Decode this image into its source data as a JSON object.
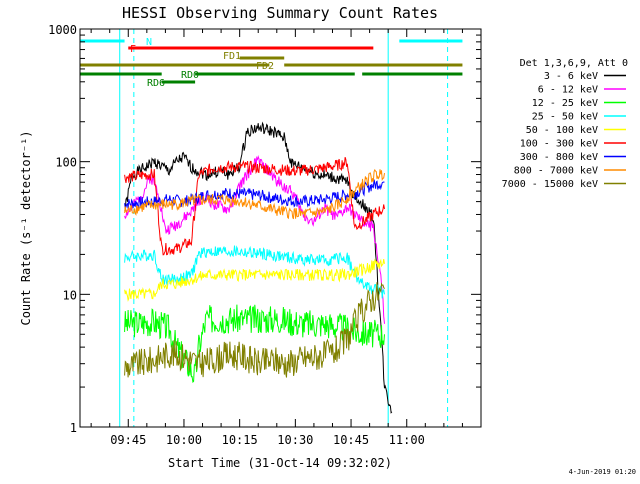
{
  "chart_data": {
    "type": "line",
    "title": "HESSI Observing Summary Count Rates",
    "xlabel": "Start Time (31-Oct-14 09:32:02)",
    "ylabel": "Count Rate (s⁻¹ detector⁻¹)",
    "x_unit": "minutes",
    "xlim": [
      0,
      108
    ],
    "ylim": [
      1,
      1000
    ],
    "yscale": "log",
    "grid": false,
    "legend_position": "right",
    "legend_title": "Det 1,3,6,9, Att 0",
    "x_ticks": [
      {
        "x": 13,
        "label": "09:45"
      },
      {
        "x": 28,
        "label": "10:00"
      },
      {
        "x": 43,
        "label": "10:15"
      },
      {
        "x": 58,
        "label": "10:30"
      },
      {
        "x": 73,
        "label": "10:45"
      },
      {
        "x": 88,
        "label": "11:00"
      }
    ],
    "x_minor_every": 5,
    "y_ticks": [
      {
        "y": 1,
        "label": "1"
      },
      {
        "y": 10,
        "label": "10"
      },
      {
        "y": 100,
        "label": "100"
      },
      {
        "y": 1000,
        "label": "1000"
      }
    ],
    "series": [
      {
        "name": "3 - 6 keV",
        "color": "#000000",
        "points": [
          [
            12,
            42
          ],
          [
            14,
            78
          ],
          [
            18,
            92
          ],
          [
            20,
            100
          ],
          [
            24,
            85
          ],
          [
            26,
            100
          ],
          [
            28,
            108
          ],
          [
            30,
            90
          ],
          [
            34,
            80
          ],
          [
            38,
            85
          ],
          [
            40,
            80
          ],
          [
            43,
            92
          ],
          [
            45,
            170
          ],
          [
            48,
            180
          ],
          [
            52,
            168
          ],
          [
            55,
            150
          ],
          [
            57,
            96
          ],
          [
            60,
            90
          ],
          [
            64,
            80
          ],
          [
            68,
            76
          ],
          [
            72,
            70
          ],
          [
            74,
            55
          ],
          [
            76,
            48
          ],
          [
            79,
            38
          ],
          [
            81,
            6
          ],
          [
            82,
            2
          ],
          [
            84,
            1.3
          ]
        ]
      },
      {
        "name": "6 - 12 keV",
        "color": "#ff00ff",
        "points": [
          [
            12,
            40
          ],
          [
            14,
            45
          ],
          [
            17,
            58
          ],
          [
            19,
            78
          ],
          [
            21,
            60
          ],
          [
            23,
            30
          ],
          [
            27,
            35
          ],
          [
            30,
            42
          ],
          [
            33,
            55
          ],
          [
            36,
            48
          ],
          [
            40,
            43
          ],
          [
            43,
            65
          ],
          [
            46,
            88
          ],
          [
            48,
            102
          ],
          [
            50,
            88
          ],
          [
            53,
            72
          ],
          [
            56,
            62
          ],
          [
            58,
            55
          ],
          [
            60,
            40
          ],
          [
            63,
            35
          ],
          [
            66,
            45
          ],
          [
            69,
            38
          ],
          [
            72,
            45
          ],
          [
            74,
            40
          ],
          [
            76,
            35
          ],
          [
            79,
            32
          ],
          [
            81,
            14
          ],
          [
            82,
            6
          ]
        ]
      },
      {
        "name": "12 - 25 keV",
        "color": "#00ff00",
        "points": [
          [
            12,
            6
          ],
          [
            20,
            6.2
          ],
          [
            24,
            5.5
          ],
          [
            26,
            4
          ],
          [
            29,
            3
          ],
          [
            31,
            2.4
          ],
          [
            32,
            4
          ],
          [
            34,
            6.5
          ],
          [
            44,
            6.5
          ],
          [
            54,
            6.5
          ],
          [
            60,
            6
          ],
          [
            66,
            6
          ],
          [
            72,
            5.5
          ],
          [
            74,
            5.2
          ],
          [
            78,
            5
          ],
          [
            80,
            5
          ],
          [
            82,
            5
          ]
        ]
      },
      {
        "name": "25 - 50 keV",
        "color": "#00ffff",
        "points": [
          [
            12,
            19
          ],
          [
            20,
            20
          ],
          [
            22,
            13
          ],
          [
            26,
            13
          ],
          [
            30,
            14
          ],
          [
            32,
            20
          ],
          [
            34,
            21
          ],
          [
            42,
            21
          ],
          [
            50,
            20
          ],
          [
            58,
            18.5
          ],
          [
            66,
            18
          ],
          [
            72,
            19
          ],
          [
            74,
            14
          ],
          [
            76,
            12
          ],
          [
            78,
            11
          ],
          [
            80,
            11
          ],
          [
            82,
            10
          ]
        ]
      },
      {
        "name": "50 - 100 keV",
        "color": "#ffff00",
        "points": [
          [
            12,
            10
          ],
          [
            20,
            10
          ],
          [
            22,
            12
          ],
          [
            26,
            12
          ],
          [
            30,
            13
          ],
          [
            34,
            14
          ],
          [
            72,
            14
          ],
          [
            75,
            15
          ],
          [
            78,
            16
          ],
          [
            80,
            17
          ],
          [
            82,
            17
          ]
        ]
      },
      {
        "name": "100 - 300 keV",
        "color": "#ff0000",
        "points": [
          [
            12,
            76
          ],
          [
            18,
            80
          ],
          [
            20,
            80
          ],
          [
            22,
            22
          ],
          [
            26,
            22
          ],
          [
            30,
            25
          ],
          [
            32,
            80
          ],
          [
            36,
            90
          ],
          [
            44,
            92
          ],
          [
            52,
            88
          ],
          [
            58,
            85
          ],
          [
            64,
            88
          ],
          [
            70,
            95
          ],
          [
            72,
            100
          ],
          [
            74,
            32
          ],
          [
            78,
            38
          ],
          [
            80,
            42
          ],
          [
            82,
            44
          ]
        ]
      },
      {
        "name": "300 - 800 keV",
        "color": "#0000ff",
        "points": [
          [
            12,
            48
          ],
          [
            20,
            50
          ],
          [
            24,
            52
          ],
          [
            28,
            50
          ],
          [
            34,
            56
          ],
          [
            40,
            58
          ],
          [
            48,
            56
          ],
          [
            54,
            52
          ],
          [
            60,
            50
          ],
          [
            66,
            52
          ],
          [
            70,
            55
          ],
          [
            74,
            58
          ],
          [
            78,
            65
          ],
          [
            80,
            68
          ],
          [
            82,
            70
          ]
        ]
      },
      {
        "name": "800 - 7000 keV",
        "color": "#ff8c00",
        "points": [
          [
            12,
            42
          ],
          [
            16,
            45
          ],
          [
            20,
            47
          ],
          [
            26,
            48
          ],
          [
            32,
            51
          ],
          [
            38,
            52
          ],
          [
            44,
            50
          ],
          [
            50,
            45
          ],
          [
            54,
            42
          ],
          [
            60,
            40
          ],
          [
            66,
            42
          ],
          [
            70,
            48
          ],
          [
            74,
            60
          ],
          [
            78,
            75
          ],
          [
            80,
            80
          ],
          [
            82,
            82
          ]
        ]
      },
      {
        "name": "7000 - 15000 keV",
        "color": "#808000",
        "points": [
          [
            12,
            2.8
          ],
          [
            16,
            3
          ],
          [
            20,
            3.2
          ],
          [
            24,
            3.6
          ],
          [
            28,
            3.4
          ],
          [
            32,
            3
          ],
          [
            36,
            3.2
          ],
          [
            40,
            3.5
          ],
          [
            44,
            3.4
          ],
          [
            48,
            3
          ],
          [
            52,
            3.2
          ],
          [
            56,
            3
          ],
          [
            60,
            3.3
          ],
          [
            64,
            3.4
          ],
          [
            68,
            3.6
          ],
          [
            70,
            4
          ],
          [
            72,
            4.6
          ],
          [
            74,
            6
          ],
          [
            76,
            7.5
          ],
          [
            78,
            9
          ],
          [
            80,
            10
          ],
          [
            82,
            11
          ]
        ]
      }
    ],
    "annotations": [
      {
        "label": "N",
        "color": "#00ffff",
        "segments": [
          [
            0,
            12
          ],
          [
            86,
            103
          ]
        ]
      },
      {
        "label": "F",
        "color": "#ff0000",
        "segments": [
          [
            13,
            79
          ]
        ]
      },
      {
        "label": "FD1",
        "color": "#808000",
        "segments": [
          [
            43,
            55
          ]
        ]
      },
      {
        "label": "FD2",
        "color": "#808000",
        "segments": [
          [
            0,
            51
          ],
          [
            55,
            103
          ]
        ]
      },
      {
        "label": "RD0",
        "color": "#008000",
        "segments": [
          [
            0,
            22
          ],
          [
            31,
            74
          ],
          [
            76,
            103
          ]
        ]
      },
      {
        "label": "RD6",
        "color": "#008000",
        "segments": [
          [
            22,
            31
          ]
        ]
      }
    ],
    "dashed_lines": {
      "color": "#00ffff",
      "x": [
        14.5,
        99
      ]
    },
    "solid_lines": {
      "color": "#00ffff",
      "x": [
        10.7,
        83
      ]
    }
  },
  "footer": {
    "date": "4-Jun-2019 01:20"
  }
}
